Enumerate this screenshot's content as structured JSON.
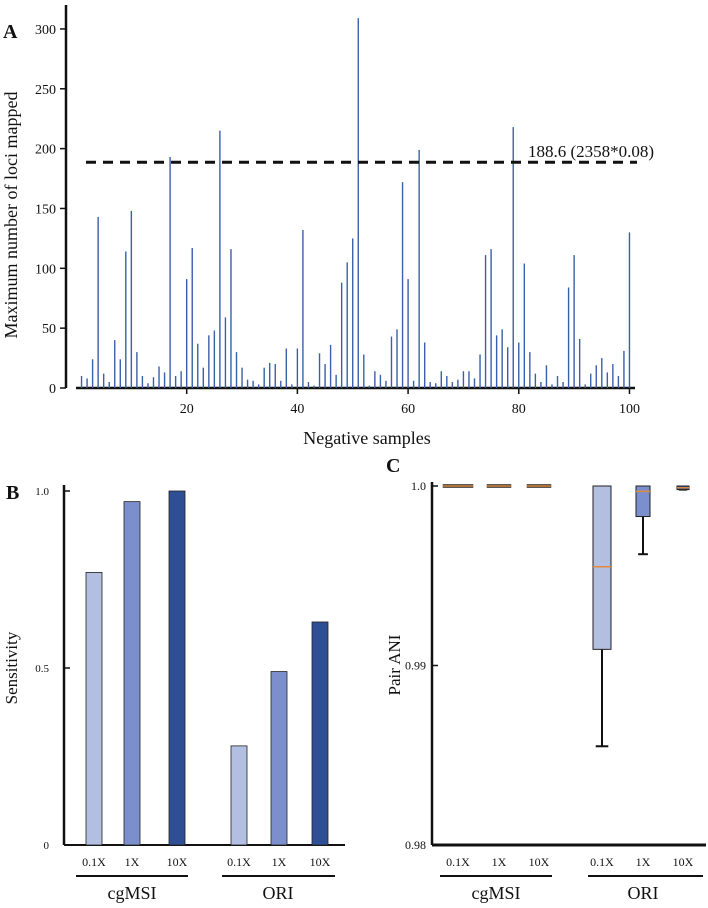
{
  "chart_data": [
    {
      "panel": "A",
      "type": "bar",
      "title": "",
      "xlabel": "Negative samples",
      "ylabel": "Maximum number of loci mapped",
      "xlim": [
        0,
        101
      ],
      "ylim": [
        0,
        320
      ],
      "xticks": [
        20,
        40,
        60,
        80,
        100
      ],
      "yticks": [
        0,
        50,
        100,
        150,
        200,
        250,
        300
      ],
      "bar_color": "#3b5fa8",
      "threshold": {
        "value": 188.6,
        "label": "188.6 (2358*0.08)"
      },
      "x": [
        1,
        2,
        3,
        4,
        5,
        6,
        7,
        8,
        9,
        10,
        11,
        12,
        13,
        14,
        15,
        16,
        17,
        18,
        19,
        20,
        21,
        22,
        23,
        24,
        25,
        26,
        27,
        28,
        29,
        30,
        31,
        32,
        33,
        34,
        35,
        36,
        37,
        38,
        39,
        40,
        41,
        42,
        43,
        44,
        45,
        46,
        47,
        48,
        49,
        50,
        51,
        52,
        53,
        54,
        55,
        56,
        57,
        58,
        59,
        60,
        61,
        62,
        63,
        64,
        65,
        66,
        67,
        68,
        69,
        70,
        71,
        72,
        73,
        74,
        75,
        76,
        77,
        78,
        79,
        80,
        81,
        82,
        83,
        84,
        85,
        86,
        87,
        88,
        89,
        90,
        91,
        92,
        93,
        94,
        95,
        96,
        97,
        98,
        99,
        100
      ],
      "values": [
        10,
        8,
        24,
        143,
        12,
        5,
        40,
        24,
        114,
        148,
        30,
        10,
        4,
        9,
        18,
        13,
        193,
        10,
        14,
        91,
        117,
        37,
        17,
        44,
        48,
        215,
        59,
        116,
        30,
        17,
        7,
        6,
        3,
        17,
        21,
        20,
        6,
        33,
        3,
        33,
        132,
        5,
        2,
        29,
        20,
        36,
        11,
        88,
        105,
        125,
        309,
        28,
        2,
        14,
        11,
        6,
        43,
        49,
        172,
        91,
        6,
        199,
        38,
        5,
        4,
        14,
        10,
        5,
        7,
        14,
        14,
        8,
        28,
        111,
        116,
        44,
        49,
        34,
        218,
        38,
        104,
        30,
        12,
        5,
        19,
        3,
        10,
        5,
        84,
        111,
        41,
        3,
        12,
        19,
        25,
        13,
        20,
        10,
        31,
        130
      ]
    },
    {
      "panel": "B",
      "type": "bar",
      "title": "",
      "xlabel": "",
      "ylabel": "Sensitivity",
      "ylim": [
        0,
        1.0
      ],
      "yticks": [
        "0",
        "0.5",
        "1.0"
      ],
      "groups": [
        "cgMSI",
        "ORI"
      ],
      "categories": [
        "0.1X",
        "1X",
        "10X"
      ],
      "colors": [
        "#b3bfe0",
        "#7b8fcd",
        "#2f4f94"
      ],
      "series": [
        {
          "name": "cgMSI",
          "values": [
            0.77,
            0.97,
            1.0
          ]
        },
        {
          "name": "ORI",
          "values": [
            0.28,
            0.49,
            0.63
          ]
        }
      ]
    },
    {
      "panel": "C",
      "type": "box",
      "title": "",
      "xlabel": "",
      "ylabel": "Pair ANI",
      "ylim": [
        0.98,
        1.0
      ],
      "yticks": [
        "0.98",
        "0.99",
        "1.0"
      ],
      "groups": [
        "cgMSI",
        "ORI"
      ],
      "categories": [
        "0.1X",
        "1X",
        "10X"
      ],
      "colors": [
        "#b3bfe0",
        "#7b8fcd",
        "#2f4f94"
      ],
      "median_color": "#e08a3c",
      "boxes": [
        {
          "group": "cgMSI",
          "label": "0.1X",
          "min": 1.0,
          "q1": 1.0,
          "median": 1.0,
          "q3": 1.0,
          "max": 1.0
        },
        {
          "group": "cgMSI",
          "label": "1X",
          "min": 1.0,
          "q1": 1.0,
          "median": 1.0,
          "q3": 1.0,
          "max": 1.0
        },
        {
          "group": "cgMSI",
          "label": "10X",
          "min": 1.0,
          "q1": 1.0,
          "median": 1.0,
          "q3": 1.0,
          "max": 1.0
        },
        {
          "group": "ORI",
          "label": "0.1X",
          "min": 0.9855,
          "q1": 0.9909,
          "median": 0.9955,
          "q3": 1.0,
          "max": 1.0
        },
        {
          "group": "ORI",
          "label": "1X",
          "min": 0.9962,
          "q1": 0.9983,
          "median": 0.9997,
          "q3": 1.0,
          "max": 1.0
        },
        {
          "group": "ORI",
          "label": "10X",
          "min": 0.9998,
          "q1": 0.9998,
          "median": 0.9999,
          "q3": 1.0,
          "max": 1.0
        }
      ]
    }
  ],
  "panel_labels": {
    "a": "A",
    "b": "B",
    "c": "C"
  }
}
